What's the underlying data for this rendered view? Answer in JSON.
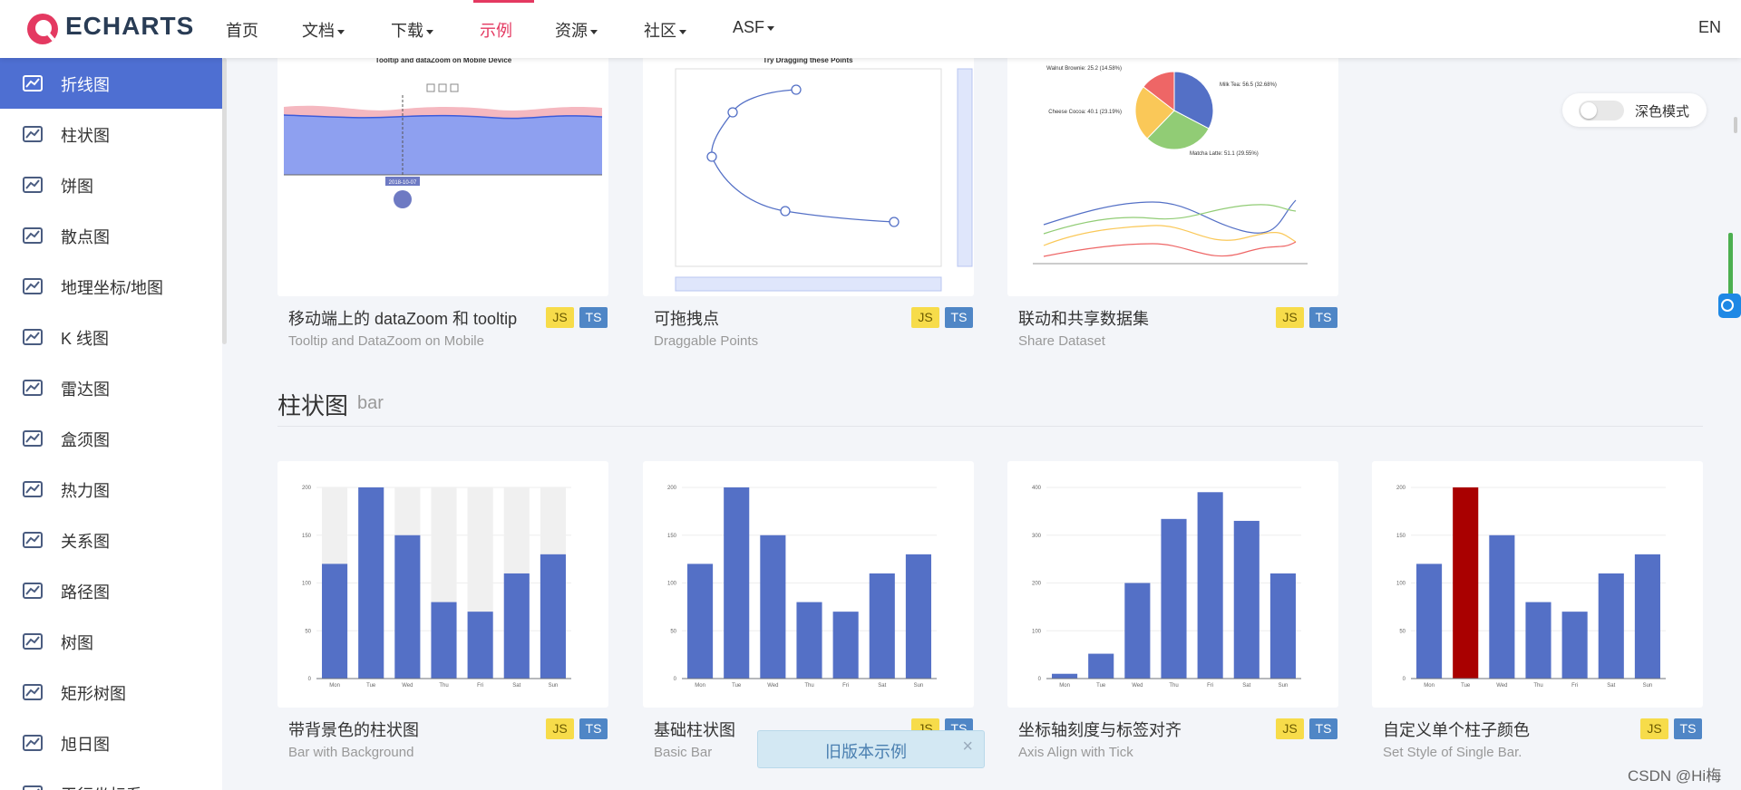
{
  "header": {
    "logo": "ECHARTS",
    "nav": [
      "首页",
      "文档",
      "下载",
      "示例",
      "资源",
      "社区",
      "ASF"
    ],
    "lang": "EN"
  },
  "sidebar": {
    "items": [
      "折线图",
      "柱状图",
      "饼图",
      "散点图",
      "地理坐标/地图",
      "K 线图",
      "雷达图",
      "盒须图",
      "热力图",
      "关系图",
      "路径图",
      "树图",
      "矩形树图",
      "旭日图",
      "平行坐标系"
    ]
  },
  "dark_mode": "深色模式",
  "badges": [
    "JS",
    "TS"
  ],
  "examples_top": [
    {
      "title": "移动端上的 dataZoom 和 tooltip",
      "subtitle": "Tooltip and DataZoom on Mobile",
      "chart": {
        "type": "area",
        "title": "Tooltip and dataZoom on Mobile Device",
        "tooltip": "2018-10-07"
      }
    },
    {
      "title": "可拖拽点",
      "subtitle": "Draggable Points",
      "chart": {
        "type": "drag",
        "title": "Try Dragging these Points"
      }
    },
    {
      "title": "联动和共享数据集",
      "subtitle": "Share Dataset",
      "chart": {
        "type": "pie",
        "labels": [
          "Milk Tea: 56.5 (32.68%)",
          "Matcha Latte: 51.1 (29.55%)",
          "Cheese Cocoa: 40.1 (23.19%)",
          "Walnut Brownie: 25.2 (14.58%)"
        ],
        "values": [
          56.5,
          51.1,
          40.1,
          25.2
        ],
        "colors": [
          "#5470c6",
          "#91cc75",
          "#fac858",
          "#ee6666"
        ]
      }
    }
  ],
  "section": {
    "title": "柱状图",
    "subtitle": "bar"
  },
  "examples_bar": [
    {
      "title": "带背景色的柱状图",
      "subtitle": "Bar with Background",
      "chart": {
        "type": "bar",
        "categories": [
          "Mon",
          "Tue",
          "Wed",
          "Thu",
          "Fri",
          "Sat",
          "Sun"
        ],
        "values": [
          120,
          200,
          150,
          80,
          70,
          110,
          130
        ],
        "color": "#5470c6",
        "background": "#f0f0f0",
        "ylim": [
          0,
          200
        ],
        "yticks": [
          0,
          50,
          100,
          150,
          200
        ]
      }
    },
    {
      "title": "基础柱状图",
      "subtitle": "Basic Bar",
      "chart": {
        "type": "bar",
        "categories": [
          "Mon",
          "Tue",
          "Wed",
          "Thu",
          "Fri",
          "Sat",
          "Sun"
        ],
        "values": [
          120,
          200,
          150,
          80,
          70,
          110,
          130
        ],
        "color": "#5470c6",
        "ylim": [
          0,
          200
        ],
        "yticks": [
          0,
          50,
          100,
          150,
          200
        ]
      }
    },
    {
      "title": "坐标轴刻度与标签对齐",
      "subtitle": "Axis Align with Tick",
      "chart": {
        "type": "bar",
        "categories": [
          "Mon",
          "Tue",
          "Wed",
          "Thu",
          "Fri",
          "Sat",
          "Sun"
        ],
        "values": [
          10,
          52,
          200,
          334,
          390,
          330,
          220
        ],
        "color": "#5470c6",
        "ylim": [
          0,
          400
        ],
        "yticks": [
          0,
          100,
          200,
          300,
          400
        ]
      }
    },
    {
      "title": "自定义单个柱子颜色",
      "subtitle": "Set Style of Single Bar.",
      "chart": {
        "type": "bar",
        "categories": [
          "Mon",
          "Tue",
          "Wed",
          "Thu",
          "Fri",
          "Sat",
          "Sun"
        ],
        "values": [
          120,
          200,
          150,
          80,
          70,
          110,
          130
        ],
        "colors": [
          "#5470c6",
          "#a90000",
          "#5470c6",
          "#5470c6",
          "#5470c6",
          "#5470c6",
          "#5470c6"
        ],
        "ylim": [
          0,
          200
        ],
        "yticks": [
          0,
          50,
          100,
          150,
          200
        ]
      }
    }
  ],
  "old_version": {
    "label": "旧版本示例",
    "close": "×"
  },
  "watermark": "CSDN @Hi梅"
}
